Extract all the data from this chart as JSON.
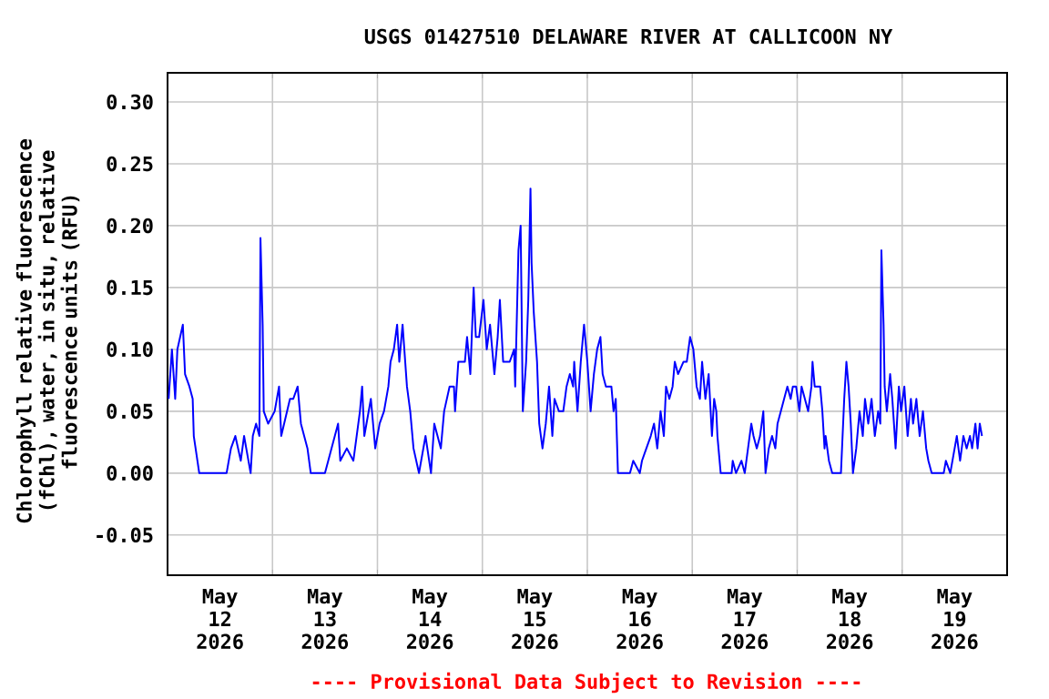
{
  "chart_data": {
    "type": "line",
    "title": "USGS 01427510 DELAWARE RIVER AT CALLICOON NY",
    "ylabel": "Chlorophyll relative fluorescence (fChl), water, in situ, relative fluorescence units (RFU)",
    "annotations": [
      "---- Provisional Data Subject to Revision ----"
    ],
    "xlim": [
      "2026-05-12T00:00",
      "2026-05-20T00:00"
    ],
    "ylim": [
      -0.0825,
      0.3235
    ],
    "xticks": [
      {
        "value": "2026-05-12T12:00",
        "label": "May 12 2026"
      },
      {
        "value": "2026-05-13T00:00",
        "label": null
      },
      {
        "value": "2026-05-13T12:00",
        "label": "May 13 2026"
      },
      {
        "value": "2026-05-14T00:00",
        "label": null
      },
      {
        "value": "2026-05-14T12:00",
        "label": "May 14 2026"
      },
      {
        "value": "2026-05-15T00:00",
        "label": null
      },
      {
        "value": "2026-05-15T12:00",
        "label": "May 15 2026"
      },
      {
        "value": "2026-05-16T00:00",
        "label": null
      },
      {
        "value": "2026-05-16T12:00",
        "label": "May 16 2026"
      },
      {
        "value": "2026-05-17T00:00",
        "label": null
      },
      {
        "value": "2026-05-17T12:00",
        "label": "May 17 2026"
      },
      {
        "value": "2026-05-18T00:00",
        "label": null
      },
      {
        "value": "2026-05-18T12:00",
        "label": "May 18 2026"
      },
      {
        "value": "2026-05-19T00:00",
        "label": null
      },
      {
        "value": "2026-05-19T12:00",
        "label": "May 19 2026"
      }
    ],
    "yticks": [
      {
        "value": -0.05,
        "label": "-0.05"
      },
      {
        "value": 0,
        "label": "0.00"
      },
      {
        "value": 0.05,
        "label": "0.05"
      },
      {
        "value": 0.1,
        "label": "0.10"
      },
      {
        "value": 0.15,
        "label": "0.15"
      },
      {
        "value": 0.2,
        "label": "0.20"
      },
      {
        "value": 0.25,
        "label": "0.25"
      },
      {
        "value": 0.3,
        "label": "0.30"
      }
    ],
    "grid": true,
    "series": [
      {
        "color": "#0000ff",
        "x": [
          "2026-05-12T00:15",
          "2026-05-12T01:00",
          "2026-05-12T01:45",
          "2026-05-12T02:15",
          "2026-05-12T03:30",
          "2026-05-12T04:00",
          "2026-05-12T05:00",
          "2026-05-12T05:45",
          "2026-05-12T06:00",
          "2026-05-12T07:15",
          "2026-05-12T10:30",
          "2026-05-12T13:30",
          "2026-05-12T14:30",
          "2026-05-12T15:30",
          "2026-05-12T16:45",
          "2026-05-12T17:30",
          "2026-05-12T19:00",
          "2026-05-12T19:30",
          "2026-05-12T20:15",
          "2026-05-12T21:00",
          "2026-05-12T21:15",
          "2026-05-12T21:45",
          "2026-05-12T22:00",
          "2026-05-12T23:00",
          "2026-05-13T00:30",
          "2026-05-13T01:30",
          "2026-05-13T02:00",
          "2026-05-13T04:00",
          "2026-05-13T04:45",
          "2026-05-13T05:45",
          "2026-05-13T06:30",
          "2026-05-13T08:00",
          "2026-05-13T08:45",
          "2026-05-13T12:00",
          "2026-05-13T12:45",
          "2026-05-13T15:00",
          "2026-05-13T15:30",
          "2026-05-13T17:00",
          "2026-05-13T18:30",
          "2026-05-13T20:00",
          "2026-05-13T20:30",
          "2026-05-13T21:00",
          "2026-05-13T22:30",
          "2026-05-13T23:30",
          "2026-05-14T00:30",
          "2026-05-14T01:30",
          "2026-05-14T02:30",
          "2026-05-14T03:00",
          "2026-05-14T03:45",
          "2026-05-14T04:30",
          "2026-05-14T05:00",
          "2026-05-14T05:45",
          "2026-05-14T06:45",
          "2026-05-14T07:30",
          "2026-05-14T08:15",
          "2026-05-14T09:30",
          "2026-05-14T11:00",
          "2026-05-14T12:15",
          "2026-05-14T13:00",
          "2026-05-14T14:30",
          "2026-05-14T15:15",
          "2026-05-14T16:30",
          "2026-05-14T17:30",
          "2026-05-14T17:45",
          "2026-05-14T18:30",
          "2026-05-14T19:15",
          "2026-05-14T20:00",
          "2026-05-14T20:30",
          "2026-05-14T21:15",
          "2026-05-14T22:00",
          "2026-05-14T22:30",
          "2026-05-14T23:15",
          "2026-05-15T00:15",
          "2026-05-15T01:00",
          "2026-05-15T01:45",
          "2026-05-15T02:45",
          "2026-05-15T03:30",
          "2026-05-15T04:00",
          "2026-05-15T04:45",
          "2026-05-15T06:15",
          "2026-05-15T07:15",
          "2026-05-15T07:30",
          "2026-05-15T08:15",
          "2026-05-15T08:45",
          "2026-05-15T09:15",
          "2026-05-15T10:00",
          "2026-05-15T10:30",
          "2026-05-15T11:00",
          "2026-05-15T11:15",
          "2026-05-15T11:45",
          "2026-05-15T12:30",
          "2026-05-15T13:00",
          "2026-05-15T13:45",
          "2026-05-15T14:30",
          "2026-05-15T15:15",
          "2026-05-15T16:00",
          "2026-05-15T16:30",
          "2026-05-15T17:30",
          "2026-05-15T18:30",
          "2026-05-15T19:15",
          "2026-05-15T20:00",
          "2026-05-15T20:45",
          "2026-05-15T21:00",
          "2026-05-15T21:45",
          "2026-05-15T22:30",
          "2026-05-15T23:15",
          "2026-05-16T00:00",
          "2026-05-16T00:45",
          "2026-05-16T01:30",
          "2026-05-16T02:15",
          "2026-05-16T03:00",
          "2026-05-16T03:30",
          "2026-05-16T04:15",
          "2026-05-16T05:30",
          "2026-05-16T06:00",
          "2026-05-16T06:30",
          "2026-05-16T07:00",
          "2026-05-16T09:45",
          "2026-05-16T10:30",
          "2026-05-16T12:00",
          "2026-05-16T12:30",
          "2026-05-16T13:30",
          "2026-05-16T14:30",
          "2026-05-16T15:15",
          "2026-05-16T16:00",
          "2026-05-16T16:45",
          "2026-05-16T17:30",
          "2026-05-16T18:00",
          "2026-05-16T18:45",
          "2026-05-16T19:30",
          "2026-05-16T20:00",
          "2026-05-16T20:45",
          "2026-05-16T22:00",
          "2026-05-16T22:45",
          "2026-05-16T23:30",
          "2026-05-17T00:15",
          "2026-05-17T01:00",
          "2026-05-17T01:45",
          "2026-05-17T02:15",
          "2026-05-17T03:00",
          "2026-05-17T03:45",
          "2026-05-17T04:30",
          "2026-05-17T05:00",
          "2026-05-17T05:30",
          "2026-05-17T05:45",
          "2026-05-17T06:30",
          "2026-05-17T09:00",
          "2026-05-17T09:15",
          "2026-05-17T10:00",
          "2026-05-17T11:15",
          "2026-05-17T12:00",
          "2026-05-17T12:45",
          "2026-05-17T13:30",
          "2026-05-17T14:00",
          "2026-05-17T14:45",
          "2026-05-17T15:30",
          "2026-05-17T16:15",
          "2026-05-17T16:45",
          "2026-05-17T17:30",
          "2026-05-17T18:15",
          "2026-05-17T19:00",
          "2026-05-17T19:30",
          "2026-05-17T20:15",
          "2026-05-17T21:00",
          "2026-05-17T21:45",
          "2026-05-17T22:30",
          "2026-05-17T23:00",
          "2026-05-17T23:45",
          "2026-05-18T00:30",
          "2026-05-18T01:00",
          "2026-05-18T01:45",
          "2026-05-18T02:30",
          "2026-05-18T03:15",
          "2026-05-18T03:30",
          "2026-05-18T04:00",
          "2026-05-18T05:15",
          "2026-05-18T05:45",
          "2026-05-18T06:15",
          "2026-05-18T06:30",
          "2026-05-18T07:15",
          "2026-05-18T08:00",
          "2026-05-18T10:00",
          "2026-05-18T10:45",
          "2026-05-18T11:15",
          "2026-05-18T11:45",
          "2026-05-18T12:15",
          "2026-05-18T12:45",
          "2026-05-18T13:30",
          "2026-05-18T14:15",
          "2026-05-18T15:00",
          "2026-05-18T15:30",
          "2026-05-18T16:15",
          "2026-05-18T17:00",
          "2026-05-18T17:45",
          "2026-05-18T18:30",
          "2026-05-18T19:00",
          "2026-05-18T19:15",
          "2026-05-18T19:45",
          "2026-05-18T20:00",
          "2026-05-18T20:30",
          "2026-05-18T21:15",
          "2026-05-18T21:45",
          "2026-05-18T22:30",
          "2026-05-18T23:15",
          "2026-05-18T23:45",
          "2026-05-19T00:30",
          "2026-05-19T01:15",
          "2026-05-19T02:00",
          "2026-05-19T02:30",
          "2026-05-19T03:15",
          "2026-05-19T04:00",
          "2026-05-19T04:45",
          "2026-05-19T05:30",
          "2026-05-19T06:00",
          "2026-05-19T06:45",
          "2026-05-19T09:30",
          "2026-05-19T10:00",
          "2026-05-19T11:00",
          "2026-05-19T12:00",
          "2026-05-19T12:30",
          "2026-05-19T13:15",
          "2026-05-19T14:00",
          "2026-05-19T14:45",
          "2026-05-19T15:30",
          "2026-05-19T16:00",
          "2026-05-19T16:45",
          "2026-05-19T17:15",
          "2026-05-19T17:45",
          "2026-05-19T18:15"
        ],
        "values": [
          0.06,
          0.1,
          0.06,
          0.1,
          0.12,
          0.08,
          0.07,
          0.06,
          0.03,
          0.0,
          0.0,
          0.0,
          0.02,
          0.03,
          0.01,
          0.03,
          0.0,
          0.03,
          0.04,
          0.03,
          0.19,
          0.12,
          0.05,
          0.04,
          0.05,
          0.07,
          0.03,
          0.06,
          0.06,
          0.07,
          0.04,
          0.02,
          0.0,
          0.0,
          0.01,
          0.04,
          0.01,
          0.02,
          0.01,
          0.05,
          0.07,
          0.03,
          0.06,
          0.02,
          0.04,
          0.05,
          0.07,
          0.09,
          0.1,
          0.12,
          0.09,
          0.12,
          0.07,
          0.05,
          0.02,
          0.0,
          0.03,
          0.0,
          0.04,
          0.02,
          0.05,
          0.07,
          0.07,
          0.05,
          0.09,
          0.09,
          0.09,
          0.11,
          0.08,
          0.15,
          0.11,
          0.11,
          0.14,
          0.1,
          0.12,
          0.08,
          0.11,
          0.14,
          0.09,
          0.09,
          0.1,
          0.07,
          0.18,
          0.2,
          0.05,
          0.09,
          0.14,
          0.23,
          0.17,
          0.13,
          0.09,
          0.04,
          0.02,
          0.04,
          0.07,
          0.03,
          0.06,
          0.05,
          0.05,
          0.07,
          0.08,
          0.07,
          0.09,
          0.05,
          0.09,
          0.12,
          0.09,
          0.05,
          0.08,
          0.1,
          0.11,
          0.08,
          0.07,
          0.07,
          0.05,
          0.06,
          0.0,
          0.0,
          0.01,
          0.0,
          0.01,
          0.02,
          0.03,
          0.04,
          0.02,
          0.05,
          0.03,
          0.07,
          0.06,
          0.07,
          0.09,
          0.08,
          0.09,
          0.09,
          0.11,
          0.1,
          0.07,
          0.06,
          0.09,
          0.06,
          0.08,
          0.03,
          0.06,
          0.05,
          0.03,
          0.0,
          0.0,
          0.01,
          0.0,
          0.01,
          0.0,
          0.02,
          0.04,
          0.03,
          0.02,
          0.03,
          0.05,
          0.0,
          0.02,
          0.03,
          0.02,
          0.04,
          0.05,
          0.06,
          0.07,
          0.06,
          0.07,
          0.07,
          0.05,
          0.07,
          0.06,
          0.05,
          0.07,
          0.09,
          0.07,
          0.07,
          0.05,
          0.02,
          0.03,
          0.01,
          0.0,
          0.0,
          0.06,
          0.09,
          0.07,
          0.04,
          0.0,
          0.02,
          0.05,
          0.03,
          0.06,
          0.04,
          0.06,
          0.03,
          0.05,
          0.04,
          0.18,
          0.12,
          0.07,
          0.05,
          0.08,
          0.06,
          0.02,
          0.07,
          0.05,
          0.07,
          0.03,
          0.06,
          0.04,
          0.06,
          0.03,
          0.05,
          0.02,
          0.01,
          0.0,
          0.0,
          0.01,
          0.0,
          0.02,
          0.03,
          0.01,
          0.03,
          0.02,
          0.03,
          0.02,
          0.04,
          0.02,
          0.04,
          0.03
        ]
      }
    ]
  }
}
